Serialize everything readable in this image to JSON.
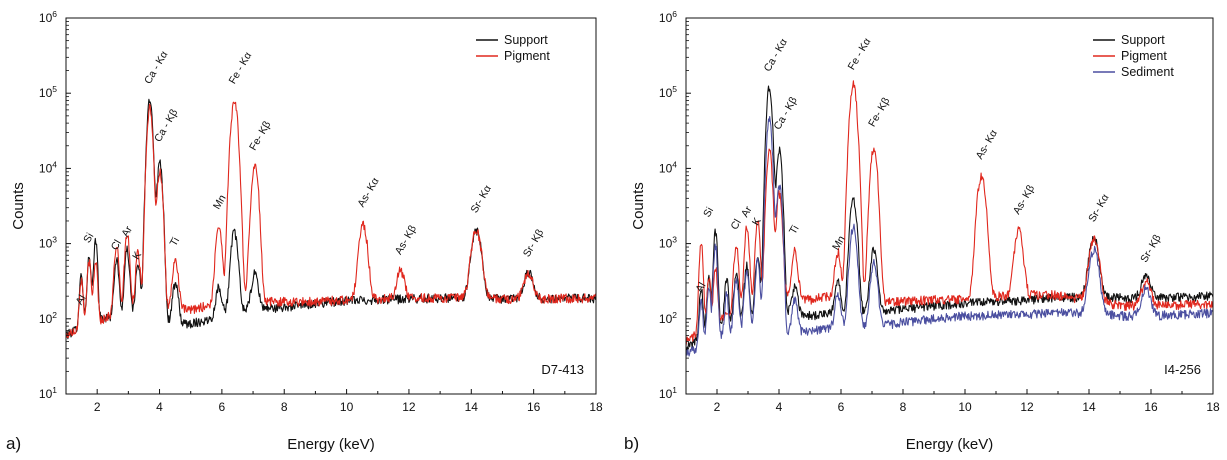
{
  "colors": {
    "Support": "#111111",
    "Pigment": "#e0281e",
    "Sediment": "#4b4fa0"
  },
  "chart_data": [
    {
      "type": "line",
      "panel_label": "a)",
      "sample_id": "D7-413",
      "xlabel": "Energy (keV)",
      "ylabel": "Counts",
      "xlim": [
        1,
        18
      ],
      "ylim": [
        10,
        1000000
      ],
      "yscale": "log",
      "grid": false,
      "legend": "top-right",
      "x_ticks": [
        "2",
        "4",
        "6",
        "8",
        "10",
        "12",
        "14",
        "16",
        "18"
      ],
      "y_ticks": [
        {
          "base": "10",
          "exp": "1"
        },
        {
          "base": "10",
          "exp": "2"
        },
        {
          "base": "10",
          "exp": "3"
        },
        {
          "base": "10",
          "exp": "4"
        },
        {
          "base": "10",
          "exp": "5"
        },
        {
          "base": "10",
          "exp": "6"
        }
      ],
      "peak_labels": [
        {
          "text": "Al",
          "x": 1.49,
          "y": 150
        },
        {
          "text": "Si",
          "x": 1.74,
          "y": 1000
        },
        {
          "text": "Cl",
          "x": 2.62,
          "y": 800
        },
        {
          "text": "Ar",
          "x": 2.96,
          "y": 1200
        },
        {
          "text": "K",
          "x": 3.31,
          "y": 600
        },
        {
          "text": "Ca - Kα",
          "x": 3.69,
          "y": 130000
        },
        {
          "text": "Ca - Kβ",
          "x": 4.01,
          "y": 22000
        },
        {
          "text": "Ti",
          "x": 4.51,
          "y": 900
        },
        {
          "text": "Mn",
          "x": 5.9,
          "y": 2800
        },
        {
          "text": "Fe - Kα",
          "x": 6.4,
          "y": 130000
        },
        {
          "text": "Fe- Kβ",
          "x": 7.06,
          "y": 17000
        },
        {
          "text": "As- Kα",
          "x": 10.53,
          "y": 3000
        },
        {
          "text": "As- Kβ",
          "x": 11.73,
          "y": 700
        },
        {
          "text": "Sr- Kα",
          "x": 14.16,
          "y": 2500
        },
        {
          "text": "Sr- Kβ",
          "x": 15.84,
          "y": 650
        }
      ],
      "series": [
        {
          "name": "Support",
          "baseline": [
            [
              1,
              60
            ],
            [
              1.5,
              80
            ],
            [
              2.2,
              100
            ],
            [
              3,
              130
            ],
            [
              4.3,
              90
            ],
            [
              4.8,
              85
            ],
            [
              5.5,
              95
            ],
            [
              6,
              120
            ],
            [
              7,
              140
            ],
            [
              7.8,
              140
            ],
            [
              8.5,
              150
            ],
            [
              9,
              160
            ],
            [
              10,
              175
            ],
            [
              12,
              185
            ],
            [
              13,
              190
            ],
            [
              14,
              190
            ],
            [
              15,
              185
            ],
            [
              16,
              185
            ],
            [
              18,
              190
            ]
          ],
          "peaks": [
            {
              "x": 1.49,
              "h": 300,
              "w": 0.05
            },
            {
              "x": 1.74,
              "h": 550,
              "w": 0.05
            },
            {
              "x": 1.95,
              "h": 1000,
              "w": 0.05
            },
            {
              "x": 2.62,
              "h": 500,
              "w": 0.06
            },
            {
              "x": 2.96,
              "h": 700,
              "w": 0.06
            },
            {
              "x": 3.31,
              "h": 400,
              "w": 0.06
            },
            {
              "x": 3.69,
              "h": 80000,
              "w": 0.07
            },
            {
              "x": 4.01,
              "h": 12000,
              "w": 0.07
            },
            {
              "x": 4.51,
              "h": 200,
              "w": 0.08
            },
            {
              "x": 5.9,
              "h": 150,
              "w": 0.08
            },
            {
              "x": 6.4,
              "h": 1300,
              "w": 0.09
            },
            {
              "x": 7.06,
              "h": 260,
              "w": 0.09
            },
            {
              "x": 14.16,
              "h": 1300,
              "w": 0.13
            },
            {
              "x": 15.84,
              "h": 230,
              "w": 0.13
            }
          ]
        },
        {
          "name": "Pigment",
          "baseline": [
            [
              1,
              60
            ],
            [
              1.5,
              80
            ],
            [
              2.2,
              100
            ],
            [
              3,
              150
            ],
            [
              4.3,
              140
            ],
            [
              5,
              130
            ],
            [
              5.5,
              150
            ],
            [
              6,
              160
            ],
            [
              7,
              170
            ],
            [
              7.8,
              170
            ],
            [
              8.5,
              170
            ],
            [
              9,
              170
            ],
            [
              10,
              180
            ],
            [
              12,
              190
            ],
            [
              13,
              190
            ],
            [
              14,
              190
            ],
            [
              15,
              185
            ],
            [
              16,
              185
            ],
            [
              18,
              190
            ]
          ],
          "peaks": [
            {
              "x": 1.49,
              "h": 250,
              "w": 0.05
            },
            {
              "x": 1.74,
              "h": 500,
              "w": 0.05
            },
            {
              "x": 1.95,
              "h": 500,
              "w": 0.05
            },
            {
              "x": 2.62,
              "h": 800,
              "w": 0.06
            },
            {
              "x": 2.96,
              "h": 1200,
              "w": 0.06
            },
            {
              "x": 3.31,
              "h": 600,
              "w": 0.06
            },
            {
              "x": 3.69,
              "h": 65000,
              "w": 0.07
            },
            {
              "x": 4.01,
              "h": 9000,
              "w": 0.07
            },
            {
              "x": 4.51,
              "h": 450,
              "w": 0.08
            },
            {
              "x": 5.9,
              "h": 1600,
              "w": 0.08
            },
            {
              "x": 6.4,
              "h": 78000,
              "w": 0.09
            },
            {
              "x": 7.06,
              "h": 10500,
              "w": 0.09
            },
            {
              "x": 10.53,
              "h": 1600,
              "w": 0.11
            },
            {
              "x": 11.73,
              "h": 250,
              "w": 0.11
            },
            {
              "x": 14.16,
              "h": 1300,
              "w": 0.13
            },
            {
              "x": 15.84,
              "h": 220,
              "w": 0.13
            }
          ]
        }
      ]
    },
    {
      "type": "line",
      "panel_label": "b)",
      "sample_id": "I4-256",
      "xlabel": "Energy (keV)",
      "ylabel": "Counts",
      "xlim": [
        1,
        18
      ],
      "ylim": [
        10,
        1000000
      ],
      "yscale": "log",
      "grid": false,
      "legend": "top-right",
      "x_ticks": [
        "2",
        "4",
        "6",
        "8",
        "10",
        "12",
        "14",
        "16",
        "18"
      ],
      "y_ticks": [
        {
          "base": "10",
          "exp": "1"
        },
        {
          "base": "10",
          "exp": "2"
        },
        {
          "base": "10",
          "exp": "3"
        },
        {
          "base": "10",
          "exp": "4"
        },
        {
          "base": "10",
          "exp": "5"
        },
        {
          "base": "10",
          "exp": "6"
        }
      ],
      "peak_labels": [
        {
          "text": "Al",
          "x": 1.49,
          "y": 220
        },
        {
          "text": "Si",
          "x": 1.74,
          "y": 2200
        },
        {
          "text": "Cl",
          "x": 2.62,
          "y": 1500
        },
        {
          "text": "Ar",
          "x": 2.96,
          "y": 2200
        },
        {
          "text": "K",
          "x": 3.31,
          "y": 1700
        },
        {
          "text": "Ca - Kα",
          "x": 3.69,
          "y": 190000
        },
        {
          "text": "Ca - Kβ",
          "x": 4.01,
          "y": 32000
        },
        {
          "text": "Ti",
          "x": 4.51,
          "y": 1300
        },
        {
          "text": "Mn",
          "x": 5.9,
          "y": 800
        },
        {
          "text": "Fe - Kα",
          "x": 6.4,
          "y": 200000
        },
        {
          "text": "Fe- Kβ",
          "x": 7.06,
          "y": 35000
        },
        {
          "text": "As- Kα",
          "x": 10.53,
          "y": 13000
        },
        {
          "text": "As- Kβ",
          "x": 11.73,
          "y": 2400
        },
        {
          "text": "Sr- Kα",
          "x": 14.16,
          "y": 1900
        },
        {
          "text": "Sr- Kβ",
          "x": 15.84,
          "y": 550
        }
      ],
      "series": [
        {
          "name": "Support",
          "baseline": [
            [
              1,
              40
            ],
            [
              1.5,
              60
            ],
            [
              2.2,
              90
            ],
            [
              3,
              110
            ],
            [
              4.3,
              120
            ],
            [
              5,
              110
            ],
            [
              6,
              120
            ],
            [
              7,
              120
            ],
            [
              8,
              135
            ],
            [
              9,
              150
            ],
            [
              10,
              160
            ],
            [
              12,
              180
            ],
            [
              13,
              190
            ],
            [
              14,
              200
            ],
            [
              15,
              190
            ],
            [
              16,
              190
            ],
            [
              18,
              200
            ]
          ],
          "peaks": [
            {
              "x": 1.49,
              "h": 200,
              "w": 0.05
            },
            {
              "x": 1.74,
              "h": 300,
              "w": 0.05
            },
            {
              "x": 1.95,
              "h": 1400,
              "w": 0.05
            },
            {
              "x": 2.31,
              "h": 250,
              "w": 0.05
            },
            {
              "x": 2.62,
              "h": 300,
              "w": 0.06
            },
            {
              "x": 2.96,
              "h": 400,
              "w": 0.06
            },
            {
              "x": 3.31,
              "h": 600,
              "w": 0.06
            },
            {
              "x": 3.69,
              "h": 120000,
              "w": 0.07
            },
            {
              "x": 4.01,
              "h": 17000,
              "w": 0.07
            },
            {
              "x": 4.51,
              "h": 150,
              "w": 0.08
            },
            {
              "x": 5.9,
              "h": 200,
              "w": 0.08
            },
            {
              "x": 6.4,
              "h": 3800,
              "w": 0.09
            },
            {
              "x": 7.06,
              "h": 750,
              "w": 0.09
            },
            {
              "x": 14.16,
              "h": 1000,
              "w": 0.13
            },
            {
              "x": 15.84,
              "h": 180,
              "w": 0.13
            }
          ]
        },
        {
          "name": "Pigment",
          "baseline": [
            [
              1,
              50
            ],
            [
              1.5,
              70
            ],
            [
              2.2,
              110
            ],
            [
              3,
              170
            ],
            [
              4.3,
              200
            ],
            [
              5,
              180
            ],
            [
              5.5,
              200
            ],
            [
              6,
              170
            ],
            [
              7,
              170
            ],
            [
              8,
              170
            ],
            [
              9,
              180
            ],
            [
              10,
              180
            ],
            [
              11,
              200
            ],
            [
              12,
              210
            ],
            [
              12.8,
              210
            ],
            [
              13.5,
              190
            ],
            [
              14,
              180
            ],
            [
              15,
              150
            ],
            [
              16,
              150
            ],
            [
              18,
              160
            ]
          ],
          "peaks": [
            {
              "x": 1.49,
              "h": 900,
              "w": 0.05
            },
            {
              "x": 1.74,
              "h": 300,
              "w": 0.05
            },
            {
              "x": 1.95,
              "h": 400,
              "w": 0.05
            },
            {
              "x": 2.62,
              "h": 800,
              "w": 0.06
            },
            {
              "x": 2.96,
              "h": 1500,
              "w": 0.06
            },
            {
              "x": 3.31,
              "h": 1800,
              "w": 0.06
            },
            {
              "x": 3.69,
              "h": 17000,
              "w": 0.07
            },
            {
              "x": 4.01,
              "h": 4500,
              "w": 0.07
            },
            {
              "x": 4.51,
              "h": 600,
              "w": 0.08
            },
            {
              "x": 5.9,
              "h": 600,
              "w": 0.08
            },
            {
              "x": 6.4,
              "h": 130000,
              "w": 0.09
            },
            {
              "x": 7.06,
              "h": 19000,
              "w": 0.09
            },
            {
              "x": 10.53,
              "h": 7800,
              "w": 0.11
            },
            {
              "x": 11.73,
              "h": 1300,
              "w": 0.11
            },
            {
              "x": 14.16,
              "h": 1000,
              "w": 0.13
            },
            {
              "x": 15.84,
              "h": 160,
              "w": 0.13
            }
          ]
        },
        {
          "name": "Sediment",
          "baseline": [
            [
              1,
              35
            ],
            [
              1.5,
              45
            ],
            [
              2.2,
              60
            ],
            [
              3,
              80
            ],
            [
              4.3,
              60
            ],
            [
              5,
              70
            ],
            [
              6,
              80
            ],
            [
              7,
              80
            ],
            [
              8,
              90
            ],
            [
              9,
              100
            ],
            [
              10,
              110
            ],
            [
              12,
              115
            ],
            [
              13,
              120
            ],
            [
              14,
              120
            ],
            [
              15,
              110
            ],
            [
              16,
              110
            ],
            [
              18,
              120
            ]
          ],
          "peaks": [
            {
              "x": 1.49,
              "h": 120,
              "w": 0.05
            },
            {
              "x": 1.74,
              "h": 200,
              "w": 0.05
            },
            {
              "x": 1.95,
              "h": 900,
              "w": 0.05
            },
            {
              "x": 2.31,
              "h": 150,
              "w": 0.05
            },
            {
              "x": 2.62,
              "h": 250,
              "w": 0.06
            },
            {
              "x": 2.96,
              "h": 350,
              "w": 0.06
            },
            {
              "x": 3.31,
              "h": 500,
              "w": 0.06
            },
            {
              "x": 3.69,
              "h": 45000,
              "w": 0.07
            },
            {
              "x": 4.01,
              "h": 6000,
              "w": 0.07
            },
            {
              "x": 4.51,
              "h": 120,
              "w": 0.08
            },
            {
              "x": 5.9,
              "h": 130,
              "w": 0.08
            },
            {
              "x": 6.4,
              "h": 1600,
              "w": 0.09
            },
            {
              "x": 7.06,
              "h": 500,
              "w": 0.09
            },
            {
              "x": 14.16,
              "h": 700,
              "w": 0.13
            },
            {
              "x": 15.84,
              "h": 150,
              "w": 0.13
            }
          ]
        }
      ]
    }
  ]
}
